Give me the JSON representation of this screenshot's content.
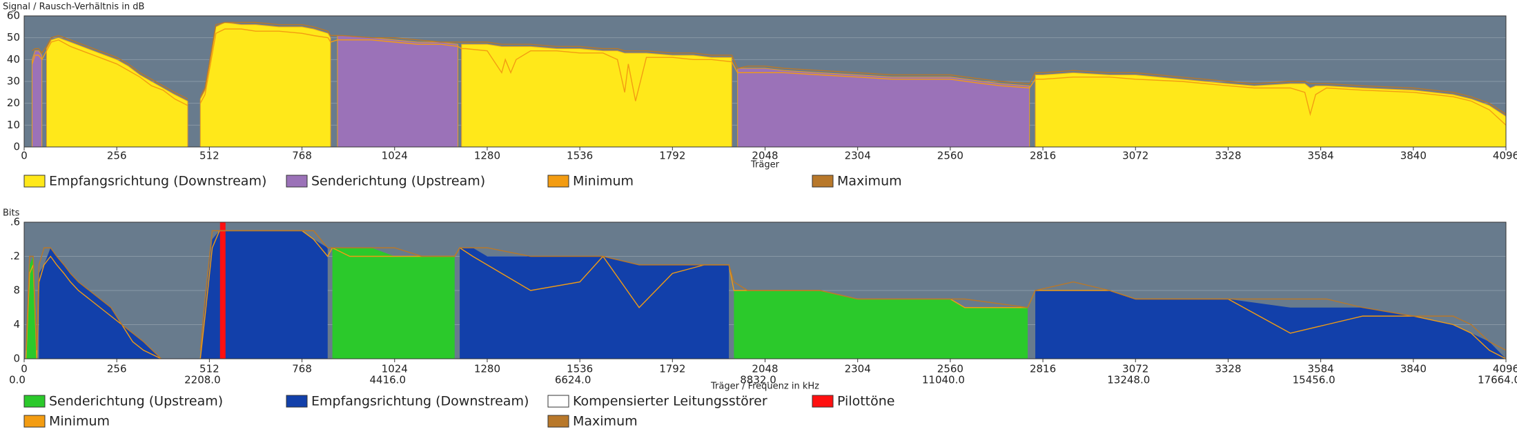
{
  "chart_data": [
    {
      "type": "area",
      "ylabel": "Signal / Rausch-Verhältnis in dB",
      "xlabel": "Träger",
      "xlim": [
        0,
        4096
      ],
      "xticks": [
        0,
        256,
        512,
        768,
        1024,
        1280,
        1536,
        1792,
        2048,
        2304,
        2560,
        2816,
        3072,
        3328,
        3584,
        3840,
        4096
      ],
      "ylim": [
        0,
        60
      ],
      "yticks": [
        0,
        10,
        20,
        30,
        40,
        50,
        60
      ],
      "grid": true,
      "x": [
        22,
        30,
        40,
        49,
        62,
        75,
        95,
        128,
        160,
        192,
        224,
        256,
        288,
        320,
        352,
        384,
        416,
        440,
        452,
        470,
        487,
        500,
        530,
        555,
        600,
        640,
        704,
        768,
        800,
        840,
        847,
        866,
        880,
        960,
        1024,
        1088,
        1152,
        1199,
        1209,
        1220,
        1280,
        1320,
        1330,
        1345,
        1360,
        1400,
        1472,
        1536,
        1600,
        1640,
        1660,
        1670,
        1690,
        1720,
        1792,
        1850,
        1900,
        1956,
        1972,
        2000,
        2048,
        2100,
        2200,
        2304,
        2400,
        2500,
        2560,
        2650,
        2700,
        2779,
        2795,
        2816,
        2900,
        3000,
        3072,
        3200,
        3328,
        3400,
        3500,
        3540,
        3555,
        3570,
        3600,
        3700,
        3840,
        3950,
        4000,
        4050,
        4096
      ],
      "series": [
        {
          "name": "Empfangsrichtung (Downstream)",
          "color": "#ffe81a",
          "type": "area",
          "values": [
            null,
            null,
            null,
            null,
            45,
            49,
            50,
            48,
            46,
            44,
            42,
            40,
            37,
            33,
            30,
            27,
            24,
            22,
            21,
            null,
            22,
            26,
            55,
            57,
            56,
            56,
            55,
            55,
            54,
            52,
            50,
            null,
            null,
            null,
            null,
            null,
            null,
            null,
            47,
            47,
            47,
            46,
            46,
            46,
            46,
            46,
            45,
            45,
            44,
            44,
            43,
            43,
            43,
            43,
            42,
            42,
            41,
            41,
            null,
            null,
            null,
            null,
            null,
            null,
            null,
            null,
            null,
            null,
            null,
            null,
            33,
            33,
            34,
            33,
            33,
            31,
            29,
            28,
            29,
            29,
            27,
            28,
            28,
            27,
            26,
            24,
            22,
            19,
            14
          ]
        },
        {
          "name": "Senderichtung (Upstream)",
          "color": "#9b72b8",
          "type": "area",
          "values": [
            40,
            44,
            44,
            42,
            null,
            null,
            null,
            null,
            null,
            null,
            null,
            null,
            null,
            null,
            null,
            null,
            null,
            null,
            null,
            null,
            null,
            null,
            null,
            null,
            null,
            null,
            null,
            null,
            null,
            null,
            null,
            51,
            51,
            50,
            49,
            48,
            48,
            47,
            null,
            null,
            null,
            null,
            null,
            null,
            null,
            null,
            null,
            null,
            null,
            null,
            null,
            null,
            null,
            null,
            null,
            null,
            null,
            null,
            36,
            36,
            36,
            35,
            34,
            33,
            32,
            32,
            32,
            30,
            29,
            28,
            null,
            null,
            null,
            null,
            null,
            null,
            null,
            null,
            null,
            null,
            null,
            null,
            null,
            null,
            null,
            null,
            null,
            null,
            null
          ]
        },
        {
          "name": "Minimum",
          "color": "#f39c12",
          "type": "line",
          "values": [
            38,
            42,
            42,
            40,
            44,
            48,
            49,
            46,
            44,
            42,
            40,
            38,
            35,
            32,
            28,
            26,
            22,
            20,
            19,
            null,
            20,
            24,
            52,
            54,
            54,
            53,
            53,
            52,
            51,
            50,
            48,
            49,
            49,
            49,
            48,
            47,
            47,
            46,
            45,
            45,
            44,
            34,
            40,
            34,
            40,
            44,
            44,
            43,
            43,
            40,
            25,
            38,
            21,
            41,
            41,
            40,
            40,
            39,
            34,
            34,
            34,
            34,
            33,
            32,
            31,
            31,
            31,
            29,
            28,
            27,
            31,
            31,
            32,
            32,
            31,
            30,
            28,
            27,
            27,
            25,
            15,
            24,
            27,
            26,
            25,
            23,
            21,
            17,
            10
          ]
        },
        {
          "name": "Maximum",
          "color": "#b8782a",
          "type": "line",
          "values": [
            44,
            45,
            45,
            43,
            46,
            50,
            51,
            49,
            47,
            45,
            43,
            41,
            38,
            34,
            31,
            28,
            25,
            23,
            22,
            null,
            23,
            27,
            56,
            57,
            57,
            57,
            56,
            56,
            55,
            53,
            51,
            51,
            51,
            50,
            50,
            49,
            48,
            48,
            48,
            48,
            48,
            47,
            47,
            47,
            47,
            47,
            46,
            46,
            45,
            45,
            44,
            44,
            44,
            44,
            43,
            43,
            42,
            42,
            36,
            37,
            37,
            36,
            35,
            34,
            33,
            33,
            33,
            31,
            30,
            29,
            34,
            34,
            35,
            34,
            34,
            32,
            30,
            29,
            30,
            30,
            29,
            29,
            29,
            28,
            27,
            25,
            23,
            20,
            15
          ]
        }
      ]
    },
    {
      "type": "area",
      "ylabel": "Bits",
      "xlabel": "Träger / Frequenz in kHz",
      "xlim": [
        0,
        4096
      ],
      "xticks": [
        0,
        256,
        512,
        768,
        1024,
        1280,
        1536,
        1792,
        2048,
        2304,
        2560,
        2816,
        3072,
        3328,
        3584,
        3840,
        4096
      ],
      "x2lim": [
        0,
        17664
      ],
      "x2ticks": [
        {
          "value": 0,
          "label": "0.0"
        },
        {
          "value": 2208,
          "label": "2208.0"
        },
        {
          "value": 4416,
          "label": "4416.0"
        },
        {
          "value": 6624,
          "label": "6624.0"
        },
        {
          "value": 8832,
          "label": "8832.0"
        },
        {
          "value": 11040,
          "label": "11040.0"
        },
        {
          "value": 13248,
          "label": "13248.0"
        },
        {
          "value": 15456,
          "label": "15456.0"
        },
        {
          "value": 17664,
          "label": "17664.0"
        }
      ],
      "ylim": [
        0,
        16
      ],
      "yticks": [
        0,
        4,
        8,
        {
          "value": 12,
          "label": ".2"
        },
        {
          "value": 16,
          "label": ".6"
        }
      ],
      "grid": true,
      "x": [
        5,
        15,
        25,
        35,
        41,
        55,
        73,
        90,
        110,
        128,
        150,
        180,
        210,
        240,
        270,
        300,
        330,
        379,
        430,
        487,
        500,
        520,
        540,
        560,
        640,
        700,
        768,
        800,
        839,
        852,
        900,
        960,
        1024,
        1100,
        1190,
        1204,
        1240,
        1280,
        1400,
        1536,
        1600,
        1700,
        1792,
        1880,
        1948,
        1962,
        2000,
        2048,
        2200,
        2304,
        2500,
        2560,
        2600,
        2774,
        2795,
        2900,
        3000,
        3072,
        3328,
        3500,
        3600,
        3700,
        3840,
        3950,
        4000,
        4050,
        4096
      ],
      "series": [
        {
          "name": "Senderichtung (Upstream)",
          "color": "#2bc92b",
          "type": "area",
          "values": [
            0,
            11,
            12,
            1,
            null,
            null,
            null,
            null,
            null,
            null,
            null,
            null,
            null,
            null,
            null,
            null,
            null,
            null,
            null,
            null,
            null,
            null,
            null,
            null,
            null,
            null,
            null,
            null,
            null,
            13,
            13,
            13,
            12,
            12,
            12,
            null,
            null,
            null,
            null,
            null,
            null,
            null,
            null,
            null,
            null,
            8,
            8,
            8,
            8,
            7,
            7,
            7,
            6,
            6,
            null,
            null,
            null,
            null,
            null,
            null,
            null,
            null,
            null,
            null,
            null,
            null,
            null
          ]
        },
        {
          "name": "Empfangsrichtung (Downstream)",
          "color": "#1240aa",
          "type": "area",
          "values": [
            null,
            null,
            null,
            null,
            10,
            11,
            13,
            12,
            11,
            10,
            9,
            8,
            7,
            6,
            4,
            3,
            2,
            0,
            null,
            0,
            6,
            14,
            15,
            15,
            15,
            15,
            15,
            14,
            13,
            null,
            null,
            null,
            null,
            null,
            null,
            13,
            13,
            12,
            12,
            12,
            12,
            11,
            11,
            11,
            11,
            null,
            null,
            null,
            null,
            null,
            null,
            null,
            null,
            null,
            8,
            8,
            8,
            7,
            7,
            6,
            6,
            6,
            5,
            4,
            3,
            2,
            0
          ]
        },
        {
          "name": "Kompensierter Leitungsstörer",
          "color": "#ffffff"
        },
        {
          "name": "Pilottöne",
          "color": "#ff1010",
          "type": "bar",
          "x": [
            549
          ],
          "values": [
            16
          ]
        },
        {
          "name": "Minimum",
          "color": "#f39c12",
          "type": "line",
          "values": [
            0,
            10,
            11,
            0,
            9,
            11,
            12,
            11,
            10,
            9,
            8,
            7,
            6,
            5,
            4,
            2,
            1,
            0,
            null,
            0,
            5,
            13,
            15,
            15,
            15,
            15,
            15,
            14,
            12,
            13,
            12,
            12,
            12,
            12,
            12,
            13,
            12,
            11,
            8,
            9,
            12,
            6,
            10,
            11,
            11,
            8,
            8,
            8,
            8,
            7,
            7,
            7,
            6,
            6,
            8,
            8,
            8,
            7,
            7,
            3,
            4,
            5,
            5,
            4,
            3,
            1,
            0
          ]
        },
        {
          "name": "Maximum",
          "color": "#b8782a",
          "type": "line",
          "values": [
            1,
            12,
            12,
            1,
            11,
            13,
            13,
            12,
            11,
            10,
            9,
            8,
            7,
            6,
            4,
            3,
            2,
            0,
            null,
            1,
            7,
            15,
            15,
            15,
            15,
            15,
            15,
            15,
            13,
            13,
            13,
            13,
            13,
            12,
            12,
            13,
            13,
            13,
            12,
            12,
            12,
            11,
            11,
            11,
            11,
            9,
            8,
            8,
            8,
            7,
            7,
            7,
            7,
            6,
            8,
            9,
            8,
            7,
            7,
            7,
            7,
            6,
            5,
            5,
            4,
            2,
            1
          ]
        }
      ]
    }
  ]
}
